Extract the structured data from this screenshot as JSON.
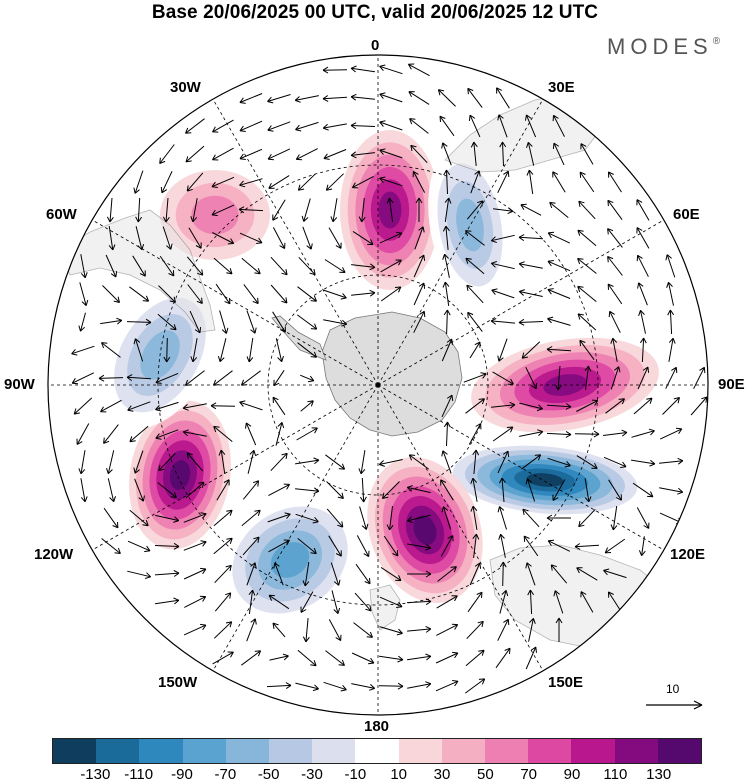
{
  "title": "Base 20/06/2025 00 UTC, valid 20/06/2025 12 UTC",
  "brand": {
    "name": "MODES",
    "mark": "®"
  },
  "map": {
    "projection": "south polar stereographic",
    "meridian_labels": {
      "m0": "0",
      "m30e": "30E",
      "m60e": "60E",
      "m90e": "90E",
      "m120e": "120E",
      "m150e": "150E",
      "m180": "180",
      "m150w": "150W",
      "m120w": "120W",
      "m90w": "90W",
      "m60w": "60W",
      "m30w": "30W"
    },
    "reference_vector_label": "10",
    "anomaly_centers": [
      {
        "sign": "positive",
        "level": 90,
        "region": "0 sector near 50S"
      },
      {
        "sign": "negative",
        "level": -50,
        "region": "20E sector"
      },
      {
        "sign": "positive",
        "level": 90,
        "region": "100E near 60S"
      },
      {
        "sign": "negative",
        "level": -130,
        "region": "110E near 55S"
      },
      {
        "sign": "positive",
        "level": 110,
        "region": "160E near 60S"
      },
      {
        "sign": "negative",
        "level": -70,
        "region": "140W near 55S"
      },
      {
        "sign": "positive",
        "level": 110,
        "region": "110W near 50S"
      },
      {
        "sign": "negative",
        "level": -50,
        "region": "80W near 50S"
      },
      {
        "sign": "positive",
        "level": 30,
        "region": "40W near 45S"
      }
    ]
  },
  "colorbar": {
    "ticks": [
      "-130",
      "-110",
      "-90",
      "-70",
      "-50",
      "-30",
      "-10",
      "10",
      "30",
      "50",
      "70",
      "90",
      "110",
      "130"
    ],
    "colors": [
      "#0f3d5e",
      "#1a6a9a",
      "#2e87bd",
      "#5aa2cf",
      "#88b6da",
      "#b6c8e3",
      "#dcdfee",
      "#ffffff",
      "#f8d6d9",
      "#f5afc2",
      "#ed7fb2",
      "#dd48a3",
      "#b8178d",
      "#830b7f",
      "#55086e"
    ]
  }
}
